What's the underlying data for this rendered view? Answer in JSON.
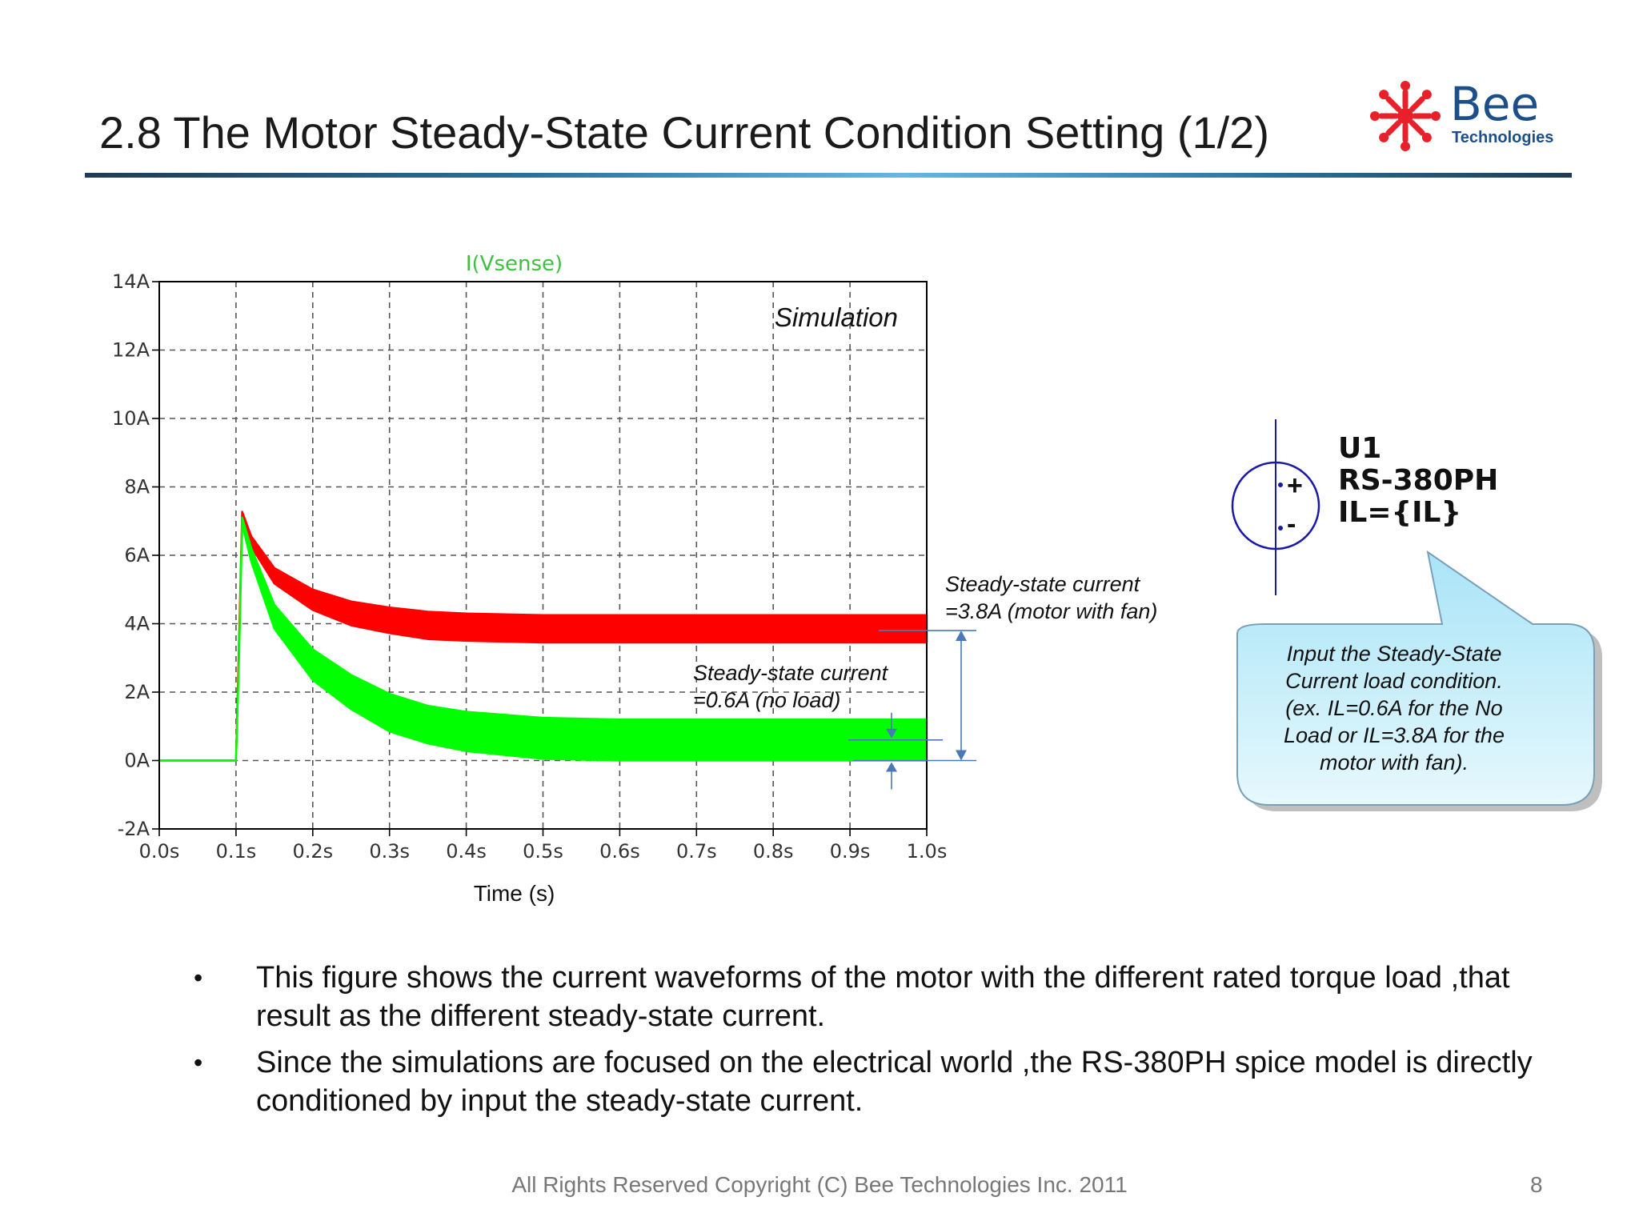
{
  "slide": {
    "title": "2.8 The Motor Steady-State Current Condition Setting (1/2)",
    "logo": {
      "brand": "Bee",
      "sub": "Technologies",
      "mark_color": "#e8202a",
      "text_color": "#1c4f8a"
    },
    "footer": "All Rights Reserved Copyright (C) Bee Technologies Inc. 2011",
    "page_number": "8",
    "bullets": [
      "This figure shows the current waveforms of the motor with the different rated torque load ,that result as the different steady-state current.",
      "Since the simulations are focused on the electrical world ,the RS-380PH spice model is directly conditioned by input the steady-state current."
    ]
  },
  "chart_data": {
    "type": "line",
    "title": "I(Vsense)",
    "title_color": "#40c040",
    "xlabel": "Time (s)",
    "ylabel": "",
    "xlim": [
      0.0,
      1.0
    ],
    "ylim": [
      -2,
      14
    ],
    "x_ticks": [
      "0.0s",
      "0.1s",
      "0.2s",
      "0.3s",
      "0.4s",
      "0.5s",
      "0.6s",
      "0.7s",
      "0.8s",
      "0.9s",
      "1.0s"
    ],
    "y_ticks": [
      "14A",
      "12A",
      "10A",
      "8A",
      "6A",
      "4A",
      "2A",
      "0A",
      "-2A"
    ],
    "grid": true,
    "annotation_main": "Simulation",
    "series": [
      {
        "color": "#ff0000",
        "x": [
          0.0,
          0.1,
          0.104,
          0.108,
          0.12,
          0.15,
          0.2,
          0.25,
          0.3,
          0.35,
          0.4,
          0.5,
          0.6,
          0.7,
          0.8,
          0.9,
          1.0
        ],
        "y": [
          0.0,
          0.0,
          3.5,
          7.2,
          6.4,
          5.4,
          4.7,
          4.3,
          4.1,
          3.95,
          3.9,
          3.85,
          3.85,
          3.85,
          3.85,
          3.85,
          3.85
        ],
        "ripple": [
          0,
          0,
          0,
          0.15,
          0.3,
          0.45,
          0.6,
          0.7,
          0.75,
          0.8,
          0.8,
          0.8,
          0.8,
          0.8,
          0.8,
          0.8,
          0.8
        ]
      },
      {
        "color": "#00ff00",
        "x": [
          0.0,
          0.1,
          0.104,
          0.108,
          0.12,
          0.15,
          0.2,
          0.25,
          0.3,
          0.35,
          0.4,
          0.5,
          0.6,
          0.7,
          0.8,
          0.9,
          1.0
        ],
        "y": [
          0.0,
          0.0,
          3.0,
          7.0,
          6.0,
          4.2,
          2.8,
          2.0,
          1.4,
          1.05,
          0.85,
          0.65,
          0.6,
          0.6,
          0.6,
          0.6,
          0.6
        ],
        "ripple": [
          0,
          0,
          0,
          0.2,
          0.4,
          0.7,
          0.9,
          1.0,
          1.1,
          1.1,
          1.15,
          1.2,
          1.2,
          1.2,
          1.2,
          1.2,
          1.2
        ]
      }
    ],
    "annotations": [
      {
        "lines": [
          "Steady-state current",
          "=3.8A (motor with fan)"
        ],
        "value": 3.8
      },
      {
        "lines": [
          "Steady-state current",
          "=0.6A (no load)"
        ],
        "value": 0.6
      }
    ]
  },
  "schematic": {
    "ref": "U1",
    "model": "RS-380PH",
    "param": "IL={IL}",
    "plus": "+",
    "minus": "-",
    "callout_lines": [
      "Input the Steady-State",
      "Current load condition.",
      "(ex. IL=0.6A for the No",
      "Load or IL=3.8A for the",
      "motor with fan)."
    ],
    "wire_color": "#1a1aa8"
  }
}
